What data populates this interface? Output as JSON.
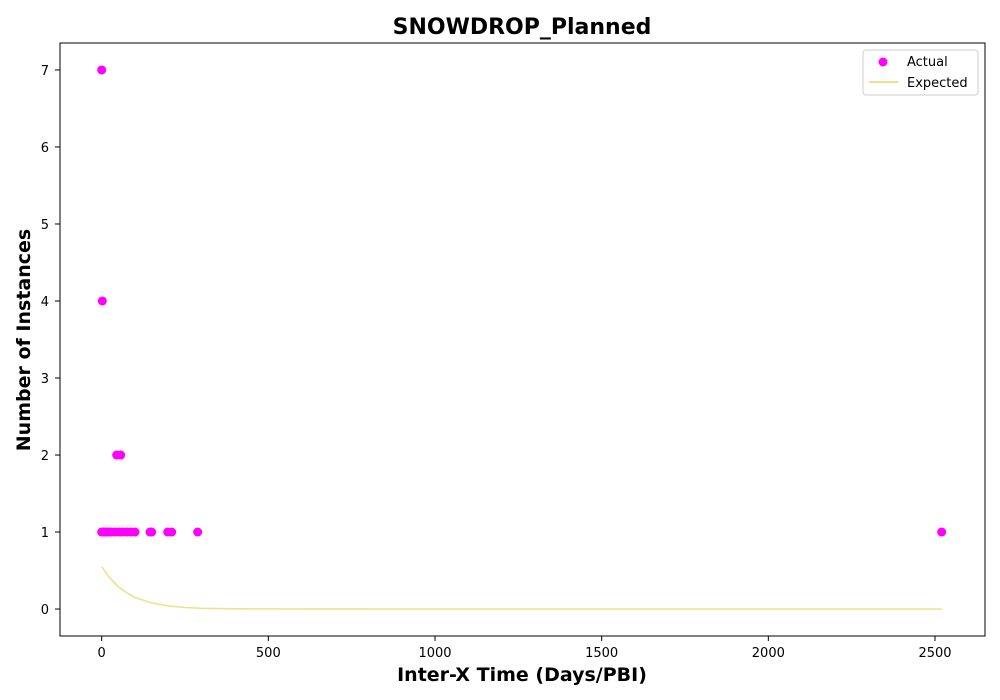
{
  "chart_data": {
    "type": "scatter",
    "title": "SNOWDROP_Planned",
    "xlabel": "Inter-X Time (Days/PBI)",
    "ylabel": "Number of Instances",
    "xlim": [
      -125,
      2650
    ],
    "ylim": [
      -0.35,
      7.35
    ],
    "xticks": [
      0,
      500,
      1000,
      1500,
      2000,
      2500
    ],
    "yticks": [
      0,
      1,
      2,
      3,
      4,
      5,
      6,
      7
    ],
    "grid": false,
    "legend_position": "top-right",
    "series": [
      {
        "name": "Actual",
        "kind": "scatter",
        "color": "#ff00ff",
        "points": [
          {
            "x": 0,
            "y": 7
          },
          {
            "x": 2,
            "y": 4
          },
          {
            "x": 45,
            "y": 2
          },
          {
            "x": 57,
            "y": 2
          },
          {
            "x": 0,
            "y": 1
          },
          {
            "x": 5,
            "y": 1
          },
          {
            "x": 10,
            "y": 1
          },
          {
            "x": 15,
            "y": 1
          },
          {
            "x": 21,
            "y": 1
          },
          {
            "x": 28,
            "y": 1
          },
          {
            "x": 40,
            "y": 1
          },
          {
            "x": 52,
            "y": 1
          },
          {
            "x": 62,
            "y": 1
          },
          {
            "x": 75,
            "y": 1
          },
          {
            "x": 88,
            "y": 1
          },
          {
            "x": 100,
            "y": 1
          },
          {
            "x": 145,
            "y": 1
          },
          {
            "x": 150,
            "y": 1
          },
          {
            "x": 198,
            "y": 1
          },
          {
            "x": 210,
            "y": 1
          },
          {
            "x": 288,
            "y": 1
          },
          {
            "x": 2520,
            "y": 1
          }
        ]
      },
      {
        "name": "Expected",
        "kind": "line",
        "color": "#f0e08c",
        "points": [
          {
            "x": 0,
            "y": 0.55
          },
          {
            "x": 25,
            "y": 0.4
          },
          {
            "x": 50,
            "y": 0.29
          },
          {
            "x": 75,
            "y": 0.21
          },
          {
            "x": 100,
            "y": 0.15
          },
          {
            "x": 150,
            "y": 0.08
          },
          {
            "x": 200,
            "y": 0.04
          },
          {
            "x": 250,
            "y": 0.02
          },
          {
            "x": 300,
            "y": 0.01
          },
          {
            "x": 400,
            "y": 0.003
          },
          {
            "x": 500,
            "y": 0.001
          },
          {
            "x": 1000,
            "y": 0
          },
          {
            "x": 1500,
            "y": 0
          },
          {
            "x": 2000,
            "y": 0
          },
          {
            "x": 2520,
            "y": 0
          }
        ]
      }
    ]
  }
}
